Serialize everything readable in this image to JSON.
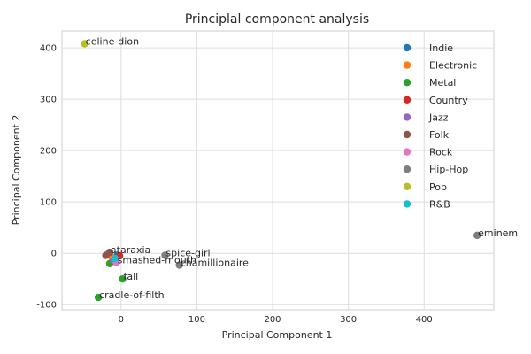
{
  "chart_data": {
    "type": "scatter",
    "title": "Principlal component analysis",
    "xlabel": "Principal Component 1",
    "ylabel": "Principal Component 2",
    "xlim": [
      -78,
      492
    ],
    "ylim": [
      -110,
      433
    ],
    "xticks": [
      0,
      100,
      200,
      300,
      400
    ],
    "yticks": [
      -100,
      0,
      100,
      200,
      300,
      400
    ],
    "grid": true,
    "legend_position": "top-right",
    "series": [
      {
        "name": "Indie",
        "color": "#1f77b4",
        "points": [
          {
            "x": -5,
            "y": -4,
            "label": ""
          }
        ]
      },
      {
        "name": "Electronic",
        "color": "#ff7f0e",
        "points": [
          {
            "x": -12,
            "y": -8,
            "label": ""
          }
        ]
      },
      {
        "name": "Metal",
        "color": "#2ca02c",
        "points": [
          {
            "x": 2,
            "y": -50,
            "label": "fall"
          },
          {
            "x": -30,
            "y": -86,
            "label": "cradle-of-filth"
          },
          {
            "x": -15,
            "y": -20,
            "label": ""
          }
        ]
      },
      {
        "name": "Country",
        "color": "#d62728",
        "points": [
          {
            "x": -2,
            "y": -5,
            "label": ""
          }
        ]
      },
      {
        "name": "Jazz",
        "color": "#9467bd",
        "points": [
          {
            "x": -10,
            "y": -14,
            "label": ""
          }
        ]
      },
      {
        "name": "Folk",
        "color": "#8c564b",
        "points": [
          {
            "x": -20,
            "y": -4,
            "label": ""
          },
          {
            "x": -15,
            "y": 2,
            "label": "ataraxia"
          }
        ]
      },
      {
        "name": "Rock",
        "color": "#e377c2",
        "points": [
          {
            "x": -6,
            "y": -18,
            "label": "smashed-mouth"
          }
        ]
      },
      {
        "name": "Hip-Hop",
        "color": "#7f7f7f",
        "points": [
          {
            "x": 470,
            "y": 35,
            "label": "eminem"
          },
          {
            "x": 77,
            "y": -23,
            "label": "chamillionaire"
          },
          {
            "x": 58,
            "y": -4,
            "label": "spice-girl"
          }
        ]
      },
      {
        "name": "Pop",
        "color": "#bcbd22",
        "points": [
          {
            "x": -48,
            "y": 408,
            "label": "celine-dion"
          }
        ]
      },
      {
        "name": "R&B",
        "color": "#17becf",
        "points": [
          {
            "x": -8,
            "y": -10,
            "label": ""
          }
        ]
      }
    ]
  }
}
